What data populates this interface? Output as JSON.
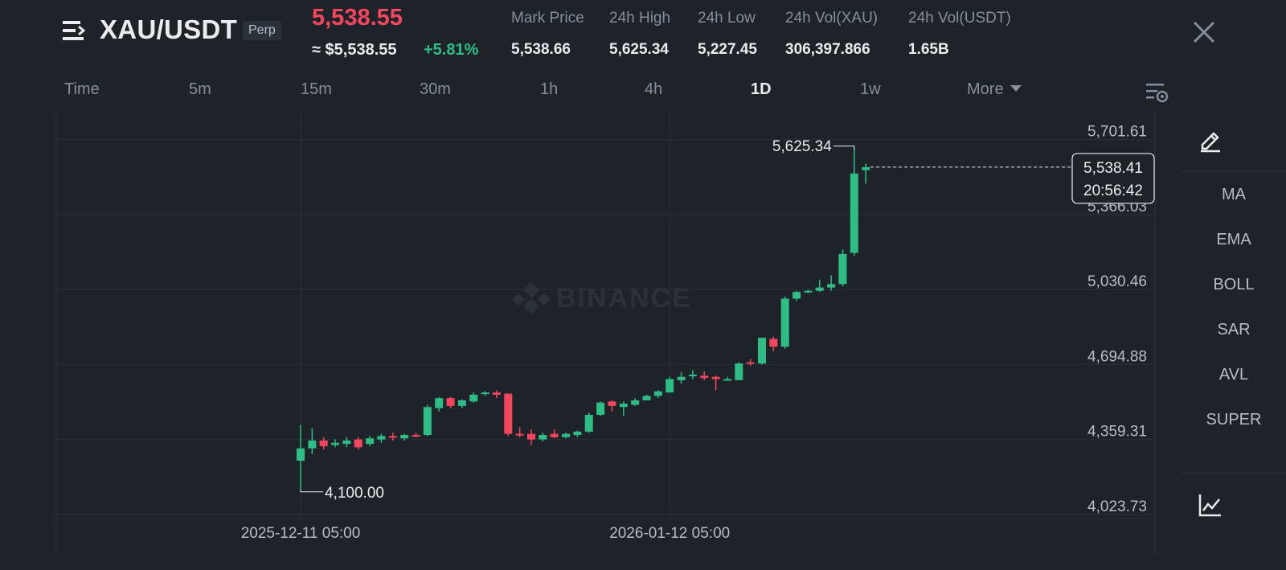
{
  "header": {
    "menu_icon": "menu-icon",
    "pair": "XAU/USDT",
    "contract_type": "Perp",
    "last_price": "5,538.55",
    "usd_price": "≈ $5,538.55",
    "change_pct": "+5.81%",
    "stats": [
      {
        "label": "Mark Price",
        "value": "5,538.66"
      },
      {
        "label": "24h High",
        "value": "5,625.34"
      },
      {
        "label": "24h Low",
        "value": "5,227.45"
      },
      {
        "label": "24h Vol(XAU)",
        "value": "306,397.866"
      },
      {
        "label": "24h Vol(USDT)",
        "value": "1.65B"
      }
    ],
    "close_icon": "close-icon"
  },
  "timeframes": {
    "items": [
      "Time",
      "5m",
      "15m",
      "30m",
      "1h",
      "4h",
      "1D",
      "1w",
      "More"
    ],
    "active": "1D",
    "settings_icon": "chart-settings-icon"
  },
  "chart": {
    "watermark": "BINANCE",
    "y_ticks": [
      "5,701.61",
      "5,366.03",
      "5,030.46",
      "4,694.88",
      "4,359.31",
      "4,023.73"
    ],
    "x_ticks": [
      "2025-12-11 05:00",
      "2026-01-12 05:00"
    ],
    "high_label": "5,625.34",
    "low_label": "4,100.00",
    "current_price": "5,538.41",
    "countdown": "20:56:42",
    "colors": {
      "up": "#2ebd85",
      "down": "#f6465d",
      "grid": "#2b3139",
      "background": "#1e2329"
    }
  },
  "chart_data": {
    "type": "candlestick",
    "ylim": [
      3966,
      5790
    ],
    "y_ticks": [
      5701.61,
      5366.03,
      5030.46,
      4694.88,
      4359.31,
      4023.73
    ],
    "candles": [
      {
        "o": 4225,
        "h": 4385,
        "l": 4100,
        "c": 4280
      },
      {
        "o": 4280,
        "h": 4370,
        "l": 4255,
        "c": 4315
      },
      {
        "o": 4315,
        "h": 4330,
        "l": 4275,
        "c": 4290
      },
      {
        "o": 4295,
        "h": 4320,
        "l": 4285,
        "c": 4305
      },
      {
        "o": 4300,
        "h": 4330,
        "l": 4285,
        "c": 4315
      },
      {
        "o": 4320,
        "h": 4330,
        "l": 4275,
        "c": 4285
      },
      {
        "o": 4300,
        "h": 4335,
        "l": 4290,
        "c": 4325
      },
      {
        "o": 4320,
        "h": 4345,
        "l": 4305,
        "c": 4335
      },
      {
        "o": 4335,
        "h": 4350,
        "l": 4315,
        "c": 4330
      },
      {
        "o": 4325,
        "h": 4345,
        "l": 4315,
        "c": 4340
      },
      {
        "o": 4340,
        "h": 4350,
        "l": 4330,
        "c": 4335
      },
      {
        "o": 4340,
        "h": 4475,
        "l": 4335,
        "c": 4465
      },
      {
        "o": 4460,
        "h": 4510,
        "l": 4445,
        "c": 4505
      },
      {
        "o": 4505,
        "h": 4510,
        "l": 4460,
        "c": 4470
      },
      {
        "o": 4470,
        "h": 4500,
        "l": 4460,
        "c": 4495
      },
      {
        "o": 4490,
        "h": 4530,
        "l": 4485,
        "c": 4520
      },
      {
        "o": 4525,
        "h": 4535,
        "l": 4515,
        "c": 4530
      },
      {
        "o": 4530,
        "h": 4540,
        "l": 4505,
        "c": 4520
      },
      {
        "o": 4525,
        "h": 4525,
        "l": 4335,
        "c": 4345
      },
      {
        "o": 4345,
        "h": 4375,
        "l": 4330,
        "c": 4340
      },
      {
        "o": 4345,
        "h": 4365,
        "l": 4295,
        "c": 4320
      },
      {
        "o": 4320,
        "h": 4350,
        "l": 4310,
        "c": 4340
      },
      {
        "o": 4345,
        "h": 4365,
        "l": 4325,
        "c": 4330
      },
      {
        "o": 4330,
        "h": 4350,
        "l": 4325,
        "c": 4345
      },
      {
        "o": 4340,
        "h": 4360,
        "l": 4330,
        "c": 4355
      },
      {
        "o": 4355,
        "h": 4440,
        "l": 4350,
        "c": 4430
      },
      {
        "o": 4430,
        "h": 4490,
        "l": 4425,
        "c": 4485
      },
      {
        "o": 4490,
        "h": 4495,
        "l": 4445,
        "c": 4470
      },
      {
        "o": 4465,
        "h": 4490,
        "l": 4425,
        "c": 4480
      },
      {
        "o": 4475,
        "h": 4505,
        "l": 4470,
        "c": 4495
      },
      {
        "o": 4495,
        "h": 4520,
        "l": 4495,
        "c": 4515
      },
      {
        "o": 4515,
        "h": 4540,
        "l": 4505,
        "c": 4535
      },
      {
        "o": 4530,
        "h": 4600,
        "l": 4530,
        "c": 4590
      },
      {
        "o": 4585,
        "h": 4620,
        "l": 4570,
        "c": 4600
      },
      {
        "o": 4605,
        "h": 4630,
        "l": 4590,
        "c": 4610
      },
      {
        "o": 4605,
        "h": 4625,
        "l": 4585,
        "c": 4595
      },
      {
        "o": 4600,
        "h": 4605,
        "l": 4540,
        "c": 4590
      },
      {
        "o": 4585,
        "h": 4600,
        "l": 4585,
        "c": 4590
      },
      {
        "o": 4585,
        "h": 4665,
        "l": 4585,
        "c": 4660
      },
      {
        "o": 4665,
        "h": 4680,
        "l": 4650,
        "c": 4660
      },
      {
        "o": 4660,
        "h": 4770,
        "l": 4655,
        "c": 4775
      },
      {
        "o": 4770,
        "h": 4780,
        "l": 4715,
        "c": 4735
      },
      {
        "o": 4735,
        "h": 4960,
        "l": 4725,
        "c": 4950
      },
      {
        "o": 4950,
        "h": 4985,
        "l": 4940,
        "c": 4980
      },
      {
        "o": 4980,
        "h": 4990,
        "l": 4975,
        "c": 4985
      },
      {
        "o": 4985,
        "h": 5035,
        "l": 4980,
        "c": 5000
      },
      {
        "o": 5000,
        "h": 5055,
        "l": 4985,
        "c": 5015
      },
      {
        "o": 5015,
        "h": 5170,
        "l": 5005,
        "c": 5150
      },
      {
        "o": 5155,
        "h": 5625.34,
        "l": 5140,
        "c": 5510
      },
      {
        "o": 5525,
        "h": 5555,
        "l": 5465,
        "c": 5538.41
      }
    ]
  },
  "side_tools": {
    "draw_icon": "pencil-draw-icon",
    "indicators": [
      "MA",
      "EMA",
      "BOLL",
      "SAR",
      "AVL",
      "SUPER"
    ],
    "bottom_icon": "line-chart-icon"
  }
}
